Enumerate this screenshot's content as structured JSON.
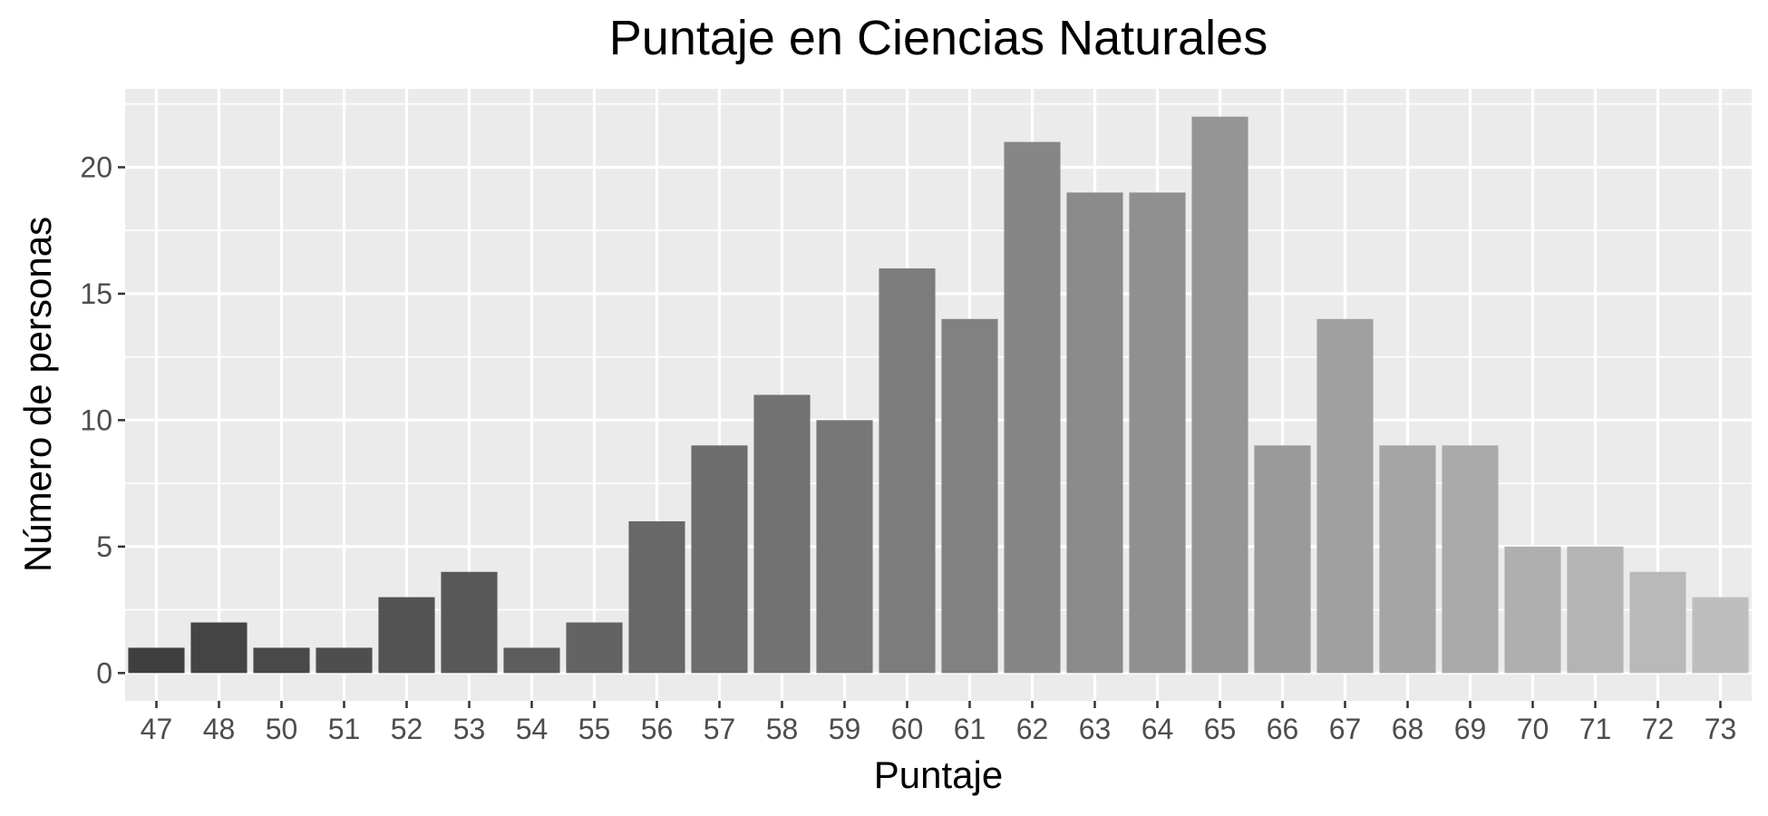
{
  "chart_data": {
    "type": "bar",
    "title": "Puntaje en Ciencias Naturales",
    "xlabel": "Puntaje",
    "ylabel": "Número de personas",
    "categories": [
      "47",
      "48",
      "50",
      "51",
      "52",
      "53",
      "54",
      "55",
      "56",
      "57",
      "58",
      "59",
      "60",
      "61",
      "62",
      "63",
      "64",
      "65",
      "66",
      "67",
      "68",
      "69",
      "70",
      "71",
      "72",
      "73"
    ],
    "values": [
      1,
      2,
      1,
      1,
      3,
      4,
      1,
      2,
      6,
      9,
      11,
      10,
      16,
      14,
      21,
      19,
      19,
      22,
      9,
      14,
      9,
      9,
      5,
      5,
      4,
      3
    ],
    "ylim": [
      -1.1,
      23.1
    ],
    "yticks": [
      0,
      5,
      10,
      15,
      20
    ],
    "ytick_labels": [
      "0",
      "5",
      "10",
      "15",
      "20"
    ],
    "grid": true,
    "legend": "none",
    "colors": {
      "panel_background": "#ebebeb",
      "gridline": "#ffffff",
      "bar_fill_start": "#3f3f3f",
      "bar_fill_end": "#bebebe"
    }
  }
}
